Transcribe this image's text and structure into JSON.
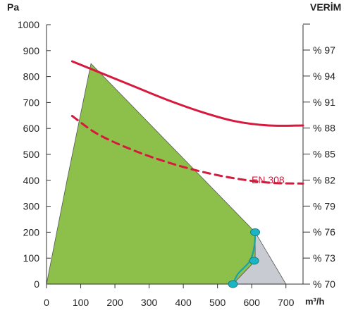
{
  "chart_data": {
    "type": "area",
    "y_left_label": "Pa",
    "y_right_label": "VERİM",
    "x_unit_label": "m³/h",
    "xlim": [
      0,
      750
    ],
    "ylim": [
      0,
      1000
    ],
    "x_ticks": [
      "0",
      "100",
      "200",
      "300",
      "400",
      "500",
      "600",
      "700"
    ],
    "x_tick_values": [
      0,
      100,
      200,
      300,
      400,
      500,
      600,
      700
    ],
    "y_ticks": [
      "0",
      "100",
      "200",
      "300",
      "400",
      "500",
      "600",
      "700",
      "800",
      "900",
      "1000"
    ],
    "y_tick_values": [
      0,
      100,
      200,
      300,
      400,
      500,
      600,
      700,
      800,
      900,
      1000
    ],
    "y_right_ticks": [
      "% 70",
      "% 73",
      "% 76",
      "% 79",
      "% 82",
      "% 85",
      "% 88",
      "% 91",
      "% 94",
      "% 97"
    ],
    "y_right_tick_values": [
      70,
      73,
      76,
      79,
      82,
      85,
      88,
      91,
      94,
      97
    ],
    "y_right_lim": [
      70,
      97
    ],
    "y_right_grid_ticks": [
      70,
      73,
      76,
      79,
      82,
      85,
      88,
      91,
      94,
      97,
      100
    ],
    "green_region": {
      "color": "#8dc04a",
      "points": [
        [
          0,
          0
        ],
        [
          60,
          400
        ],
        [
          130,
          850
        ],
        [
          610,
          200
        ],
        [
          610,
          90
        ],
        [
          545,
          0
        ]
      ]
    },
    "gray_region": {
      "color": "#c9cbd2",
      "points": [
        [
          610,
          200
        ],
        [
          700,
          0
        ],
        [
          545,
          0
        ],
        [
          610,
          90
        ]
      ]
    },
    "series": [
      {
        "style": "solid",
        "color": "#d7193d",
        "axis": "right",
        "x": [
          75,
          150,
          250,
          350,
          450,
          550,
          650,
          750
        ],
        "y": [
          95.7,
          94.5,
          92.9,
          91.3,
          89.9,
          88.8,
          88.3,
          88.3
        ]
      },
      {
        "name": "EN 308",
        "style": "dashed",
        "color": "#d7193d",
        "axis": "right",
        "x": [
          75,
          150,
          250,
          350,
          450,
          550,
          650,
          750
        ],
        "y": [
          89.4,
          87.3,
          85.5,
          84.1,
          83.0,
          82.2,
          81.7,
          81.6
        ]
      },
      {
        "style": "solid",
        "color": "#1aa3a3",
        "axis": "left",
        "x": [
          545,
          560,
          595,
          608,
          610
        ],
        "y": [
          0,
          40,
          90,
          150,
          200
        ]
      }
    ],
    "markers": {
      "color": "#1ab5c4",
      "x": [
        545,
        607,
        610
      ],
      "y": [
        0,
        90,
        200
      ]
    },
    "grid": false
  }
}
